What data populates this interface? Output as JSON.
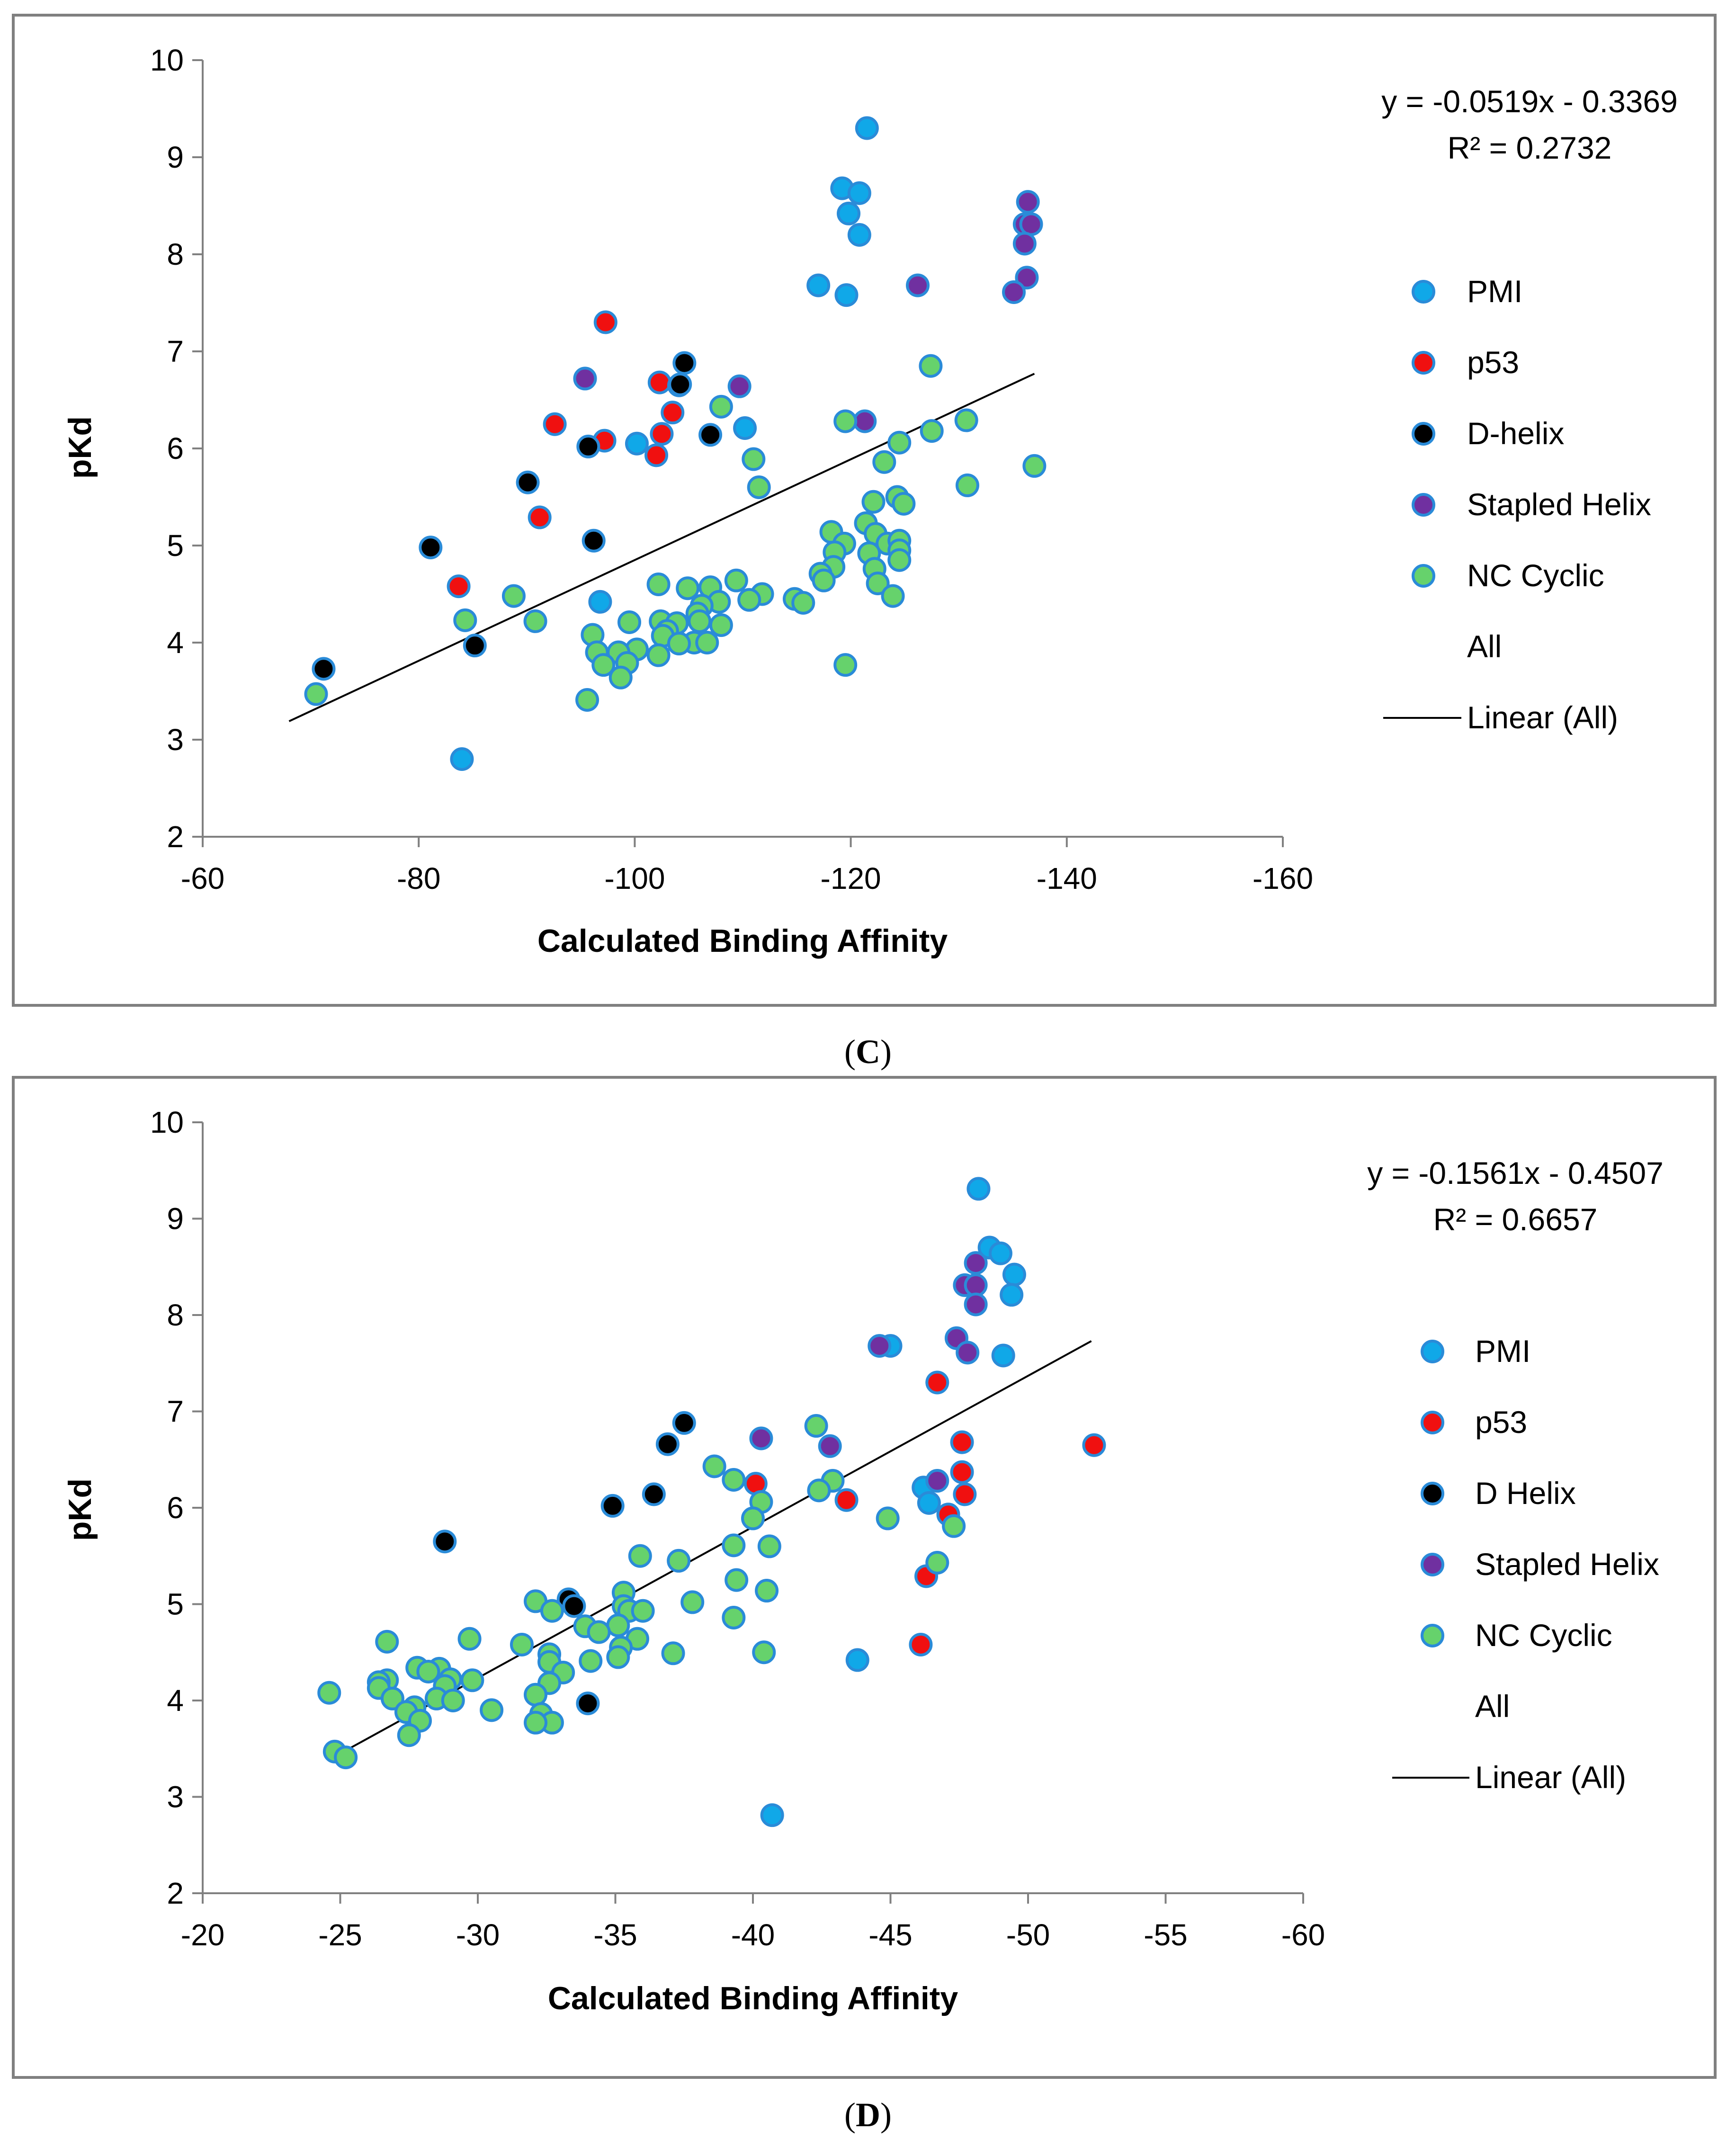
{
  "colors": {
    "PMI": "#10a8e8",
    "p53": "#f01010",
    "D": "#000000",
    "Stapled": "#7030a0",
    "NC": "#66d26c",
    "markerStroke": "#2a8bd8",
    "axis": "#808080",
    "frame": "#808080",
    "trendline": "#000000"
  },
  "captions": [
    "(C)",
    "(D)"
  ],
  "chart_data": [
    {
      "type": "scatter",
      "caption": "(C)",
      "xlabel": "Calculated Binding Affinity",
      "ylabel": "pKd",
      "xlim": [
        -60,
        -160
      ],
      "xticks": [
        -60,
        -80,
        -100,
        -120,
        -140,
        -160
      ],
      "xtick_labels": [
        "-60",
        "-80",
        "-100",
        "-120",
        "-140",
        "-160"
      ],
      "ylim": [
        2,
        10
      ],
      "yticks": [
        2,
        3,
        4,
        5,
        6,
        7,
        8,
        9,
        10
      ],
      "ytick_labels": [
        "2",
        "3",
        "4",
        "5",
        "6",
        "7",
        "8",
        "9",
        "10"
      ],
      "grid": false,
      "legend_position": "right",
      "equation": "y = -0.0519x - 0.3369",
      "r2": "R² = 0.2732",
      "trendline": {
        "name": "Linear (All)",
        "x": [
          -68,
          -137
        ],
        "y": [
          3.19,
          6.77
        ]
      },
      "legend": [
        {
          "label": "PMI",
          "key": "PMI",
          "marker": true
        },
        {
          "label": "p53",
          "key": "p53",
          "marker": true
        },
        {
          "label": "D-helix",
          "key": "D",
          "marker": true
        },
        {
          "label": "Stapled Helix",
          "key": "Stapled",
          "marker": true
        },
        {
          "label": "NC Cyclic",
          "key": "NC",
          "marker": true
        },
        {
          "label": "All",
          "key": "All",
          "marker": false
        },
        {
          "label": "Linear (All)",
          "key": "Linear",
          "marker": false,
          "line": true
        }
      ],
      "series": [
        {
          "name": "PMI",
          "key": "PMI",
          "points": [
            [
              -121.5,
              9.3
            ],
            [
              -119.2,
              8.68
            ],
            [
              -120.8,
              8.63
            ],
            [
              -119.8,
              8.42
            ],
            [
              -120.8,
              8.2
            ],
            [
              -117,
              7.68
            ],
            [
              -119.6,
              7.58
            ],
            [
              -100.2,
              6.05
            ],
            [
              -110.2,
              6.21
            ],
            [
              -96.8,
              4.42
            ],
            [
              -84,
              2.8
            ]
          ]
        },
        {
          "name": "p53",
          "key": "p53",
          "points": [
            [
              -97.3,
              7.3
            ],
            [
              -102.3,
              6.68
            ],
            [
              -104.1,
              6.65
            ],
            [
              -103.5,
              6.37
            ],
            [
              -92.6,
              6.25
            ],
            [
              -102.5,
              6.15
            ],
            [
              -97.2,
              6.08
            ],
            [
              -102.0,
              5.93
            ],
            [
              -91.2,
              5.29
            ],
            [
              -83.7,
              4.58
            ]
          ]
        },
        {
          "name": "D-helix",
          "key": "D",
          "points": [
            [
              -104.6,
              6.88
            ],
            [
              -104.2,
              6.66
            ],
            [
              -107,
              6.14
            ],
            [
              -95.7,
              6.02
            ],
            [
              -90.1,
              5.65
            ],
            [
              -81.1,
              4.98
            ],
            [
              -96.2,
              5.05
            ],
            [
              -85.2,
              3.97
            ],
            [
              -71.2,
              3.73
            ]
          ]
        },
        {
          "name": "Stapled Helix",
          "key": "Stapled",
          "points": [
            [
              -136.4,
              8.54
            ],
            [
              -136.1,
              8.31
            ],
            [
              -136.7,
              8.31
            ],
            [
              -136.1,
              8.11
            ],
            [
              -136.3,
              7.76
            ],
            [
              -135.1,
              7.61
            ],
            [
              -126.2,
              7.68
            ],
            [
              -95.4,
              6.72
            ],
            [
              -109.7,
              6.64
            ],
            [
              -121.3,
              6.28
            ]
          ]
        },
        {
          "name": "NC Cyclic",
          "key": "NC",
          "points": [
            [
              -127.4,
              6.85
            ],
            [
              -119.5,
              6.28
            ],
            [
              -130.7,
              6.29
            ],
            [
              -127.5,
              6.18
            ],
            [
              -124.5,
              6.06
            ],
            [
              -108,
              6.43
            ],
            [
              -111,
              5.89
            ],
            [
              -123.1,
              5.86
            ],
            [
              -111.5,
              5.6
            ],
            [
              -130.8,
              5.62
            ],
            [
              -137,
              5.82
            ],
            [
              -124.3,
              5.5
            ],
            [
              -122.1,
              5.45
            ],
            [
              -124.9,
              5.43
            ],
            [
              -121.4,
              5.23
            ],
            [
              -122.3,
              5.12
            ],
            [
              -118.2,
              5.14
            ],
            [
              -119.4,
              5.02
            ],
            [
              -123.4,
              5.02
            ],
            [
              -124.5,
              5.05
            ],
            [
              -124.5,
              4.95
            ],
            [
              -118.5,
              4.93
            ],
            [
              -121.7,
              4.92
            ],
            [
              -124.5,
              4.85
            ],
            [
              -118.4,
              4.78
            ],
            [
              -122.2,
              4.76
            ],
            [
              -117.2,
              4.71
            ],
            [
              -117.5,
              4.64
            ],
            [
              -122.5,
              4.61
            ],
            [
              -123.9,
              4.48
            ],
            [
              -88.8,
              4.48
            ],
            [
              -84.3,
              4.23
            ],
            [
              -90.8,
              4.22
            ],
            [
              -102.2,
              4.6
            ],
            [
              -104.9,
              4.56
            ],
            [
              -107.0,
              4.57
            ],
            [
              -109.4,
              4.64
            ],
            [
              -111.8,
              4.5
            ],
            [
              -110.6,
              4.44
            ],
            [
              -114.8,
              4.45
            ],
            [
              -115.6,
              4.41
            ],
            [
              -107.8,
              4.42
            ],
            [
              -106.2,
              4.38
            ],
            [
              -105.8,
              4.3
            ],
            [
              -106.0,
              4.22
            ],
            [
              -102.4,
              4.22
            ],
            [
              -103.9,
              4.2
            ],
            [
              -108.0,
              4.18
            ],
            [
              -99.5,
              4.21
            ],
            [
              -103.0,
              4.12
            ],
            [
              -102.6,
              4.07
            ],
            [
              -96.1,
              4.08
            ],
            [
              -105.5,
              4.0
            ],
            [
              -106.7,
              4.0
            ],
            [
              -104.1,
              3.99
            ],
            [
              -100.2,
              3.93
            ],
            [
              -96.5,
              3.9
            ],
            [
              -98.5,
              3.9
            ],
            [
              -102.2,
              3.87
            ],
            [
              -99.3,
              3.79
            ],
            [
              -97.1,
              3.77
            ],
            [
              -98.7,
              3.64
            ],
            [
              -119.5,
              3.77
            ],
            [
              -70.5,
              3.47
            ],
            [
              -95.6,
              3.41
            ]
          ]
        }
      ]
    },
    {
      "type": "scatter",
      "caption": "(D)",
      "xlabel": "Calculated Binding Affinity",
      "ylabel": "pKd",
      "xlim": [
        -20,
        -60
      ],
      "xticks": [
        -20,
        -25,
        -30,
        -35,
        -40,
        -45,
        -50,
        -55,
        -60
      ],
      "xtick_labels": [
        "-20",
        "-25",
        "-30",
        "-35",
        "-40",
        "-45",
        "-50",
        "-55",
        "-60"
      ],
      "ylim": [
        2,
        10
      ],
      "yticks": [
        2,
        3,
        4,
        5,
        6,
        7,
        8,
        9,
        10
      ],
      "ytick_labels": [
        "2",
        "3",
        "4",
        "5",
        "6",
        "7",
        "8",
        "9",
        "10"
      ],
      "grid": false,
      "legend_position": "right",
      "equation": "y = -0.1561x - 0.4507",
      "r2": "R² = 0.6657",
      "trendline": {
        "name": "Linear (All)",
        "x": [
          -25,
          -52.3
        ],
        "y": [
          3.45,
          7.73
        ]
      },
      "legend": [
        {
          "label": "PMI",
          "key": "PMI",
          "marker": true
        },
        {
          "label": "p53",
          "key": "p53",
          "marker": true
        },
        {
          "label": "D Helix",
          "key": "D",
          "marker": true
        },
        {
          "label": "Stapled Helix",
          "key": "Stapled",
          "marker": true
        },
        {
          "label": "NC Cyclic",
          "key": "NC",
          "marker": true
        },
        {
          "label": "All",
          "key": "All",
          "marker": false
        },
        {
          "label": "Linear (All)",
          "key": "Linear",
          "marker": false,
          "line": true
        }
      ],
      "series": [
        {
          "name": "PMI",
          "key": "PMI",
          "points": [
            [
              -48.2,
              9.31
            ],
            [
              -48.6,
              8.7
            ],
            [
              -49.0,
              8.64
            ],
            [
              -49.5,
              8.42
            ],
            [
              -49.4,
              8.21
            ],
            [
              -45.0,
              7.68
            ],
            [
              -49.1,
              7.58
            ],
            [
              -46.2,
              6.21
            ],
            [
              -46.4,
              6.05
            ],
            [
              -43.8,
              4.42
            ],
            [
              -40.7,
              2.81
            ]
          ]
        },
        {
          "name": "p53",
          "key": "p53",
          "points": [
            [
              -46.7,
              7.3
            ],
            [
              -47.6,
              6.68
            ],
            [
              -52.4,
              6.65
            ],
            [
              -47.6,
              6.37
            ],
            [
              -40.1,
              6.25
            ],
            [
              -47.7,
              6.14
            ],
            [
              -43.4,
              6.08
            ],
            [
              -47.1,
              5.93
            ],
            [
              -46.3,
              5.29
            ],
            [
              -46.1,
              4.58
            ]
          ]
        },
        {
          "name": "D Helix",
          "key": "D",
          "points": [
            [
              -37.5,
              6.88
            ],
            [
              -36.9,
              6.66
            ],
            [
              -36.4,
              6.14
            ],
            [
              -34.9,
              6.02
            ],
            [
              -28.8,
              5.65
            ],
            [
              -33.3,
              5.05
            ],
            [
              -33.5,
              4.98
            ],
            [
              -34.0,
              3.97
            ]
          ]
        },
        {
          "name": "Stapled Helix",
          "key": "Stapled",
          "points": [
            [
              -48.1,
              8.54
            ],
            [
              -47.7,
              8.31
            ],
            [
              -48.1,
              8.31
            ],
            [
              -48.1,
              8.11
            ],
            [
              -47.4,
              7.76
            ],
            [
              -47.8,
              7.61
            ],
            [
              -44.6,
              7.68
            ],
            [
              -40.3,
              6.72
            ],
            [
              -42.8,
              6.64
            ],
            [
              -46.7,
              6.28
            ]
          ]
        },
        {
          "name": "NC Cyclic",
          "key": "NC",
          "points": [
            [
              -42.3,
              6.85
            ],
            [
              -38.6,
              6.43
            ],
            [
              -39.3,
              6.29
            ],
            [
              -42.9,
              6.28
            ],
            [
              -42.4,
              6.18
            ],
            [
              -40.3,
              6.06
            ],
            [
              -40.0,
              5.89
            ],
            [
              -44.9,
              5.89
            ],
            [
              -47.3,
              5.81
            ],
            [
              -39.3,
              5.61
            ],
            [
              -40.6,
              5.6
            ],
            [
              -35.9,
              5.5
            ],
            [
              -37.3,
              5.45
            ],
            [
              -46.7,
              5.43
            ],
            [
              -39.4,
              5.25
            ],
            [
              -40.5,
              5.14
            ],
            [
              -35.3,
              5.12
            ],
            [
              -32.1,
              5.03
            ],
            [
              -37.8,
              5.02
            ],
            [
              -35.3,
              4.98
            ],
            [
              -35.5,
              4.93
            ],
            [
              -32.7,
              4.93
            ],
            [
              -36.0,
              4.93
            ],
            [
              -39.3,
              4.86
            ],
            [
              -35.1,
              4.78
            ],
            [
              -33.9,
              4.77
            ],
            [
              -34.4,
              4.71
            ],
            [
              -35.8,
              4.64
            ],
            [
              -29.7,
              4.64
            ],
            [
              -26.7,
              4.61
            ],
            [
              -31.6,
              4.58
            ],
            [
              -35.2,
              4.55
            ],
            [
              -37.1,
              4.49
            ],
            [
              -40.4,
              4.5
            ],
            [
              -32.6,
              4.48
            ],
            [
              -35.1,
              4.45
            ],
            [
              -32.6,
              4.4
            ],
            [
              -34.1,
              4.41
            ],
            [
              -27.8,
              4.34
            ],
            [
              -28.6,
              4.33
            ],
            [
              -28.2,
              4.3
            ],
            [
              -33.1,
              4.29
            ],
            [
              -29.0,
              4.22
            ],
            [
              -29.8,
              4.21
            ],
            [
              -26.7,
              4.21
            ],
            [
              -26.4,
              4.19
            ],
            [
              -32.6,
              4.18
            ],
            [
              -28.8,
              4.15
            ],
            [
              -26.4,
              4.13
            ],
            [
              -24.6,
              4.08
            ],
            [
              -32.1,
              4.06
            ],
            [
              -26.9,
              4.02
            ],
            [
              -28.5,
              4.02
            ],
            [
              -29.1,
              4.0
            ],
            [
              -27.7,
              3.93
            ],
            [
              -30.5,
              3.9
            ],
            [
              -27.4,
              3.88
            ],
            [
              -32.3,
              3.86
            ],
            [
              -27.9,
              3.79
            ],
            [
              -32.7,
              3.77
            ],
            [
              -32.1,
              3.77
            ],
            [
              -27.5,
              3.64
            ],
            [
              -24.8,
              3.47
            ],
            [
              -25.2,
              3.41
            ]
          ]
        }
      ]
    }
  ]
}
